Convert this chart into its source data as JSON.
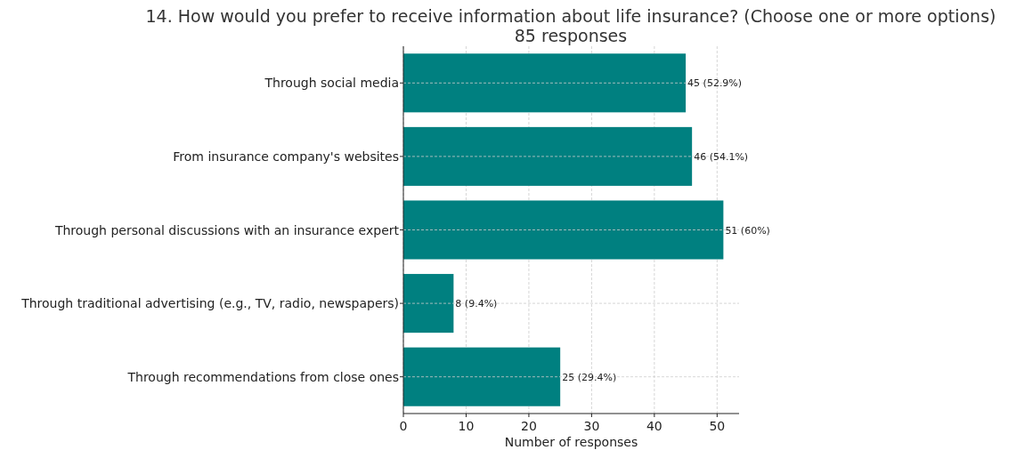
{
  "chart_data": {
    "type": "bar",
    "orientation": "horizontal",
    "title": "14. How would you prefer to receive information about life insurance? (Choose one or more options)",
    "subtitle": "85 responses",
    "xlabel": "Number of responses",
    "categories": [
      "Through social media",
      "From insurance company's websites",
      "Through personal discussions with an insurance expert",
      "Through traditional advertising (e.g., TV, radio, newspapers)",
      "Through recommendations from close ones"
    ],
    "values": [
      45,
      46,
      51,
      8,
      25
    ],
    "value_labels": [
      "45 (52.9%)",
      "46 (54.1%)",
      "51 (60%)",
      "8 (9.4%)",
      "25 (29.4%)"
    ],
    "color": "#008080",
    "xlim": [
      0,
      53.5
    ],
    "xticks": [
      0,
      10,
      20,
      30,
      40,
      50
    ],
    "grid": true
  }
}
